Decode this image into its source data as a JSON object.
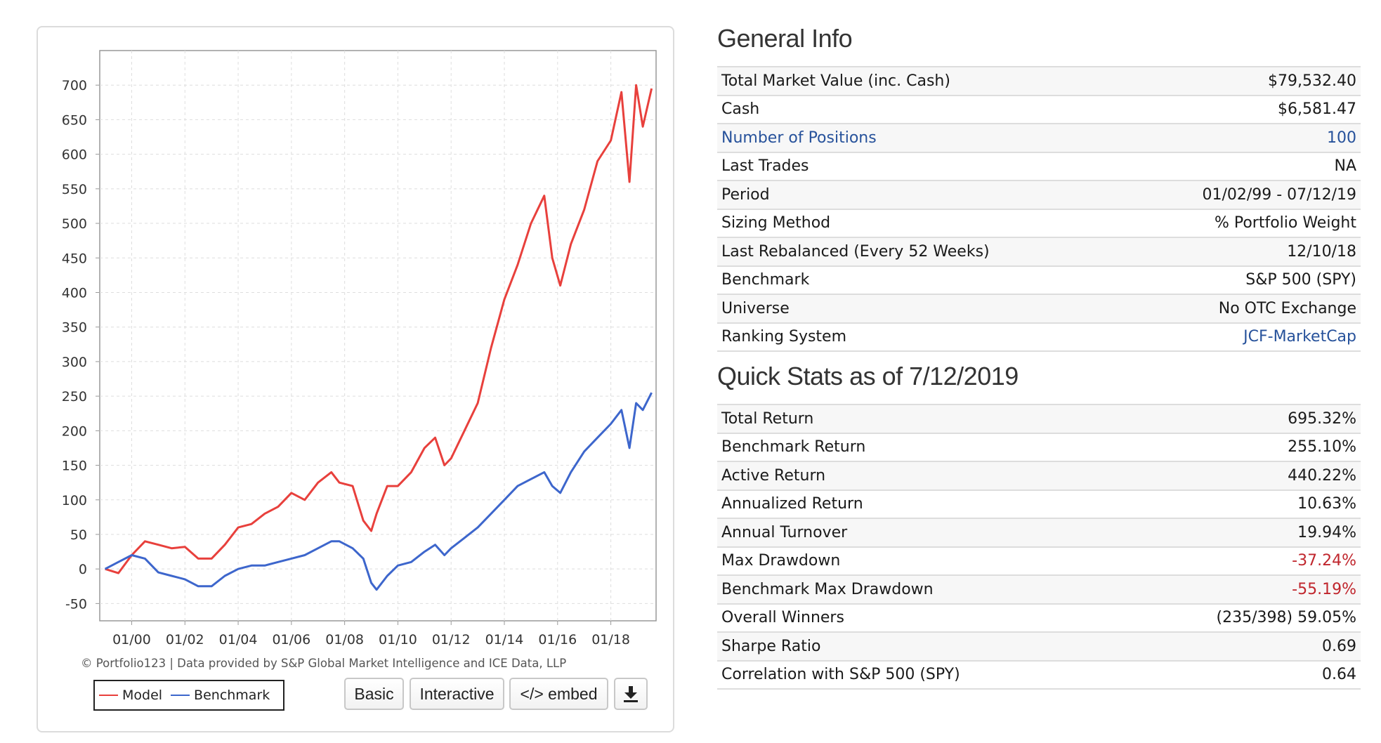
{
  "chart": {
    "credit": "© Portfolio123 | Data provided by S&P Global Market Intelligence and ICE Data, LLP",
    "legend": {
      "model": "Model",
      "benchmark": "Benchmark"
    },
    "buttons": {
      "basic": "Basic",
      "interactive": "Interactive",
      "embed": "</> embed",
      "download_icon": "download-icon"
    },
    "colors": {
      "model": "#e8403c",
      "benchmark": "#3d66cc"
    }
  },
  "chart_data": {
    "type": "line",
    "x": [
      1999.0,
      1999.5,
      2000.0,
      2000.5,
      2001.0,
      2001.5,
      2002.0,
      2002.5,
      2003.0,
      2003.5,
      2004.0,
      2004.5,
      2005.0,
      2005.5,
      2006.0,
      2006.5,
      2007.0,
      2007.5,
      2007.8,
      2008.3,
      2008.7,
      2009.0,
      2009.2,
      2009.6,
      2010.0,
      2010.5,
      2011.0,
      2011.4,
      2011.75,
      2012.0,
      2012.5,
      2013.0,
      2013.5,
      2014.0,
      2014.5,
      2015.0,
      2015.5,
      2015.8,
      2016.1,
      2016.5,
      2017.0,
      2017.5,
      2018.0,
      2018.4,
      2018.7,
      2018.95,
      2019.2,
      2019.53
    ],
    "xlim": [
      1998.8,
      2019.7
    ],
    "xticks": [
      "01/00",
      "01/02",
      "01/04",
      "01/06",
      "01/08",
      "01/10",
      "01/12",
      "01/14",
      "01/16",
      "01/18"
    ],
    "xtick_values": [
      2000,
      2002,
      2004,
      2006,
      2008,
      2010,
      2012,
      2014,
      2016,
      2018
    ],
    "ylim": [
      -75,
      750
    ],
    "yticks": [
      -50,
      0,
      50,
      100,
      150,
      200,
      250,
      300,
      350,
      400,
      450,
      500,
      550,
      600,
      650,
      700
    ],
    "grid": true,
    "series": [
      {
        "name": "Model",
        "values": [
          0,
          -6,
          20,
          40,
          35,
          30,
          32,
          15,
          15,
          35,
          60,
          65,
          80,
          90,
          110,
          100,
          125,
          140,
          125,
          120,
          70,
          55,
          80,
          120,
          120,
          140,
          175,
          190,
          150,
          160,
          200,
          240,
          320,
          390,
          440,
          500,
          540,
          450,
          410,
          470,
          520,
          590,
          620,
          690,
          560,
          700,
          640,
          695
        ]
      },
      {
        "name": "Benchmark",
        "values": [
          0,
          10,
          20,
          15,
          -5,
          -10,
          -15,
          -25,
          -25,
          -10,
          0,
          5,
          5,
          10,
          15,
          20,
          30,
          40,
          40,
          30,
          15,
          -20,
          -30,
          -10,
          5,
          10,
          25,
          35,
          20,
          30,
          45,
          60,
          80,
          100,
          120,
          130,
          140,
          120,
          110,
          140,
          170,
          190,
          210,
          230,
          175,
          240,
          230,
          255
        ]
      }
    ]
  },
  "general_info": {
    "title": "General Info",
    "rows": [
      {
        "label": "Total Market Value (inc. Cash)",
        "value": "$79,532.40"
      },
      {
        "label": "Cash",
        "value": "$6,581.47"
      },
      {
        "label": "Number of Positions",
        "value": "100"
      },
      {
        "label": "Last Trades",
        "value": "NA"
      },
      {
        "label": "Period",
        "value": "01/02/99 - 07/12/19"
      },
      {
        "label": "Sizing Method",
        "value": "% Portfolio Weight"
      },
      {
        "label": "Last Rebalanced (Every 52 Weeks)",
        "value": "12/10/18"
      },
      {
        "label": "Benchmark",
        "value": "S&P 500 (SPY)"
      },
      {
        "label": "Universe",
        "value": "No OTC Exchange"
      },
      {
        "label": "Ranking System",
        "value": "JCF-MarketCap"
      }
    ]
  },
  "quick_stats": {
    "title": "Quick Stats as of 7/12/2019",
    "rows": [
      {
        "label": "Total Return",
        "value": "695.32%"
      },
      {
        "label": "Benchmark Return",
        "value": "255.10%"
      },
      {
        "label": "Active Return",
        "value": "440.22%"
      },
      {
        "label": "Annualized Return",
        "value": "10.63%"
      },
      {
        "label": "Annual Turnover",
        "value": "19.94%"
      },
      {
        "label": "Max Drawdown",
        "value": "-37.24%"
      },
      {
        "label": "Benchmark Max Drawdown",
        "value": "-55.19%"
      },
      {
        "label": "Overall Winners",
        "value": "(235/398) 59.05%"
      },
      {
        "label": "Sharpe Ratio",
        "value": "0.69"
      },
      {
        "label": "Correlation with S&P 500 (SPY)",
        "value": "0.64"
      }
    ]
  }
}
